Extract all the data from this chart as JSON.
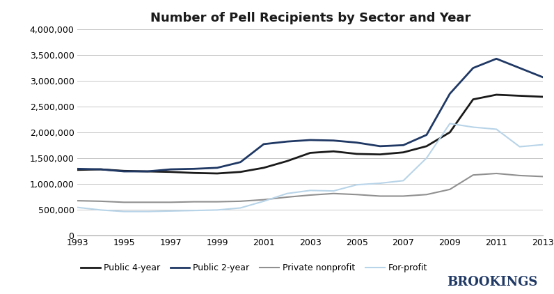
{
  "title": "Number of Pell Recipients by Sector and Year",
  "years": [
    1993,
    1994,
    1995,
    1996,
    1997,
    1998,
    1999,
    2000,
    2001,
    2002,
    2003,
    2004,
    2005,
    2006,
    2007,
    2008,
    2009,
    2010,
    2011,
    2012,
    2013
  ],
  "public_4year": [
    1270000,
    1280000,
    1250000,
    1240000,
    1230000,
    1210000,
    1200000,
    1230000,
    1310000,
    1440000,
    1600000,
    1630000,
    1580000,
    1570000,
    1610000,
    1730000,
    2000000,
    2640000,
    2730000,
    2710000,
    2690000
  ],
  "public_2year": [
    1290000,
    1280000,
    1240000,
    1240000,
    1280000,
    1290000,
    1310000,
    1420000,
    1770000,
    1820000,
    1850000,
    1840000,
    1800000,
    1730000,
    1750000,
    1950000,
    2750000,
    3250000,
    3430000,
    3250000,
    3070000
  ],
  "private_nonprofit": [
    670000,
    660000,
    640000,
    640000,
    640000,
    650000,
    650000,
    660000,
    690000,
    740000,
    780000,
    810000,
    790000,
    760000,
    760000,
    790000,
    890000,
    1170000,
    1200000,
    1160000,
    1140000
  ],
  "for_profit": [
    540000,
    490000,
    460000,
    460000,
    470000,
    480000,
    490000,
    530000,
    660000,
    810000,
    870000,
    860000,
    980000,
    1010000,
    1060000,
    1500000,
    2170000,
    2100000,
    2060000,
    1720000,
    1760000
  ],
  "public_4year_color": "#1a1a1a",
  "public_2year_color": "#1f3864",
  "private_nonprofit_color": "#909090",
  "for_profit_color": "#b8d4e8",
  "ylim": [
    0,
    4000000
  ],
  "yticks": [
    0,
    500000,
    1000000,
    1500000,
    2000000,
    2500000,
    3000000,
    3500000,
    4000000
  ],
  "xticks": [
    1993,
    1995,
    1997,
    1999,
    2001,
    2003,
    2005,
    2007,
    2009,
    2011,
    2013
  ],
  "background_color": "#ffffff",
  "grid_color": "#c8c8c8",
  "brookings_color": "#1f3864",
  "legend_labels": [
    "Public 4-year",
    "Public 2-year",
    "Private nonprofit",
    "For-profit"
  ]
}
